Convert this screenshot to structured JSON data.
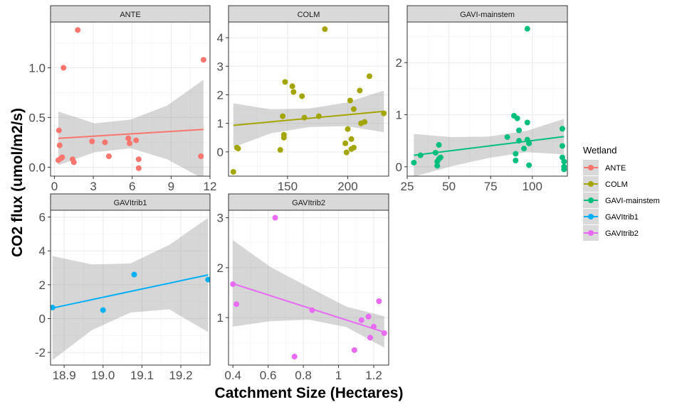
{
  "chart_data": {
    "type": "scatter",
    "xlabel": "Catchment Size (Hectares)",
    "ylabel": "CO2 flux (umol/m2/s)",
    "legend": {
      "title": "Wetland",
      "position": "right",
      "entries": [
        {
          "name": "ANTE",
          "color": "#F8766D"
        },
        {
          "name": "COLM",
          "color": "#A3A500"
        },
        {
          "name": "GAVI-mainstem",
          "color": "#00BF7D"
        },
        {
          "name": "GAVItrib1",
          "color": "#00B0F6"
        },
        {
          "name": "GAVItrib2",
          "color": "#E76BF3"
        }
      ]
    },
    "grid": true,
    "smoothing": "linear fit with confidence band",
    "panels": [
      {
        "name": "ANTE",
        "color": "#F8766D",
        "xlim": [
          -0.3,
          12.0
        ],
        "ylim": [
          -0.09,
          1.46
        ],
        "xticks": [
          0,
          3,
          6,
          9,
          12
        ],
        "yticks": [
          0.0,
          0.5,
          1.0
        ],
        "ytick_labels": [
          "0.0",
          "0.5",
          "1.0"
        ],
        "x": [
          0.3,
          0.35,
          0.4,
          0.5,
          0.6,
          0.7,
          1.4,
          1.5,
          1.8,
          2.9,
          3.9,
          4.2,
          5.7,
          5.8,
          6.3,
          6.5,
          6.5,
          11.3,
          11.5
        ],
        "y": [
          0.07,
          0.37,
          0.22,
          0.09,
          0.1,
          1.0,
          0.08,
          0.05,
          1.38,
          0.26,
          0.25,
          0.11,
          0.29,
          0.24,
          0.27,
          0.08,
          -0.01,
          0.11,
          1.08
        ],
        "fit": {
          "x": [
            0.3,
            11.5
          ],
          "y": [
            0.29,
            0.38
          ]
        },
        "band": {
          "x": [
            0.3,
            3.1,
            5.9,
            8.7,
            11.5
          ],
          "lower": [
            0.02,
            0.15,
            0.19,
            0.08,
            -0.12
          ],
          "upper": [
            0.56,
            0.44,
            0.48,
            0.62,
            0.88
          ]
        }
      },
      {
        "name": "COLM",
        "color": "#A3A500",
        "xlim": [
          101,
          234
        ],
        "ylim": [
          -0.85,
          4.55
        ],
        "xticks": [
          100,
          150,
          200
        ],
        "yticks": [
          0,
          1,
          2,
          3,
          4
        ],
        "ytick_labels": [
          "0",
          "1",
          "2",
          "3",
          "4"
        ],
        "x": [
          105,
          108,
          109,
          144,
          146,
          147,
          147,
          148,
          154,
          155,
          162,
          164,
          176,
          181,
          198,
          199,
          200,
          202,
          203,
          203,
          205,
          205,
          210,
          211,
          214,
          218,
          230
        ],
        "y": [
          -0.7,
          0.15,
          0.12,
          0.07,
          1.25,
          0.6,
          0.5,
          2.45,
          2.3,
          2.1,
          1.95,
          1.2,
          1.25,
          4.3,
          0.3,
          -0.02,
          0.8,
          1.8,
          0.1,
          0.45,
          1.5,
          0.15,
          2.15,
          1.0,
          1.05,
          2.65,
          1.35
        ],
        "fit": {
          "x": [
            105,
            230
          ],
          "y": [
            0.93,
            1.42
          ]
        },
        "band": {
          "x": [
            105,
            136,
            168,
            199,
            230
          ],
          "lower": [
            0.16,
            0.65,
            0.87,
            0.9,
            0.69
          ],
          "upper": [
            1.7,
            1.49,
            1.52,
            1.73,
            2.15
          ]
        }
      },
      {
        "name": "GAVI-mainstem",
        "color": "#00BF7D",
        "xlim": [
          25,
          121
        ],
        "ylim": [
          -0.18,
          2.78
        ],
        "xticks": [
          25,
          50,
          75,
          100
        ],
        "yticks": [
          0,
          1,
          2
        ],
        "ytick_labels": [
          "0",
          "1",
          "2"
        ],
        "x": [
          29,
          33,
          42,
          43,
          43,
          44,
          44,
          45,
          85,
          89,
          90,
          90,
          91,
          92,
          92,
          95,
          97,
          97,
          97,
          98,
          98,
          118,
          118,
          118,
          119,
          119,
          119
        ],
        "y": [
          0.08,
          0.22,
          0.27,
          0.02,
          0.1,
          0.15,
          0.42,
          0.18,
          0.57,
          0.98,
          0.25,
          0.12,
          0.93,
          0.7,
          0.5,
          0.35,
          2.65,
          0.85,
          0.52,
          0.45,
          0.03,
          0.73,
          0.4,
          0.18,
          0.1,
          0.0,
          -0.05
        ],
        "fit": {
          "x": [
            29,
            119
          ],
          "y": [
            0.22,
            0.58
          ]
        },
        "band": {
          "x": [
            29,
            51.5,
            74,
            96.5,
            119
          ],
          "lower": [
            -0.19,
            0.01,
            0.17,
            0.28,
            0.24
          ],
          "upper": [
            0.63,
            0.57,
            0.58,
            0.69,
            0.92
          ]
        }
      },
      {
        "name": "GAVItrib1",
        "color": "#00B0F6",
        "xlim": [
          18.865,
          19.275
        ],
        "ylim": [
          -2.75,
          6.4
        ],
        "xticks": [
          18.9,
          19.0,
          19.1,
          19.2
        ],
        "yticks": [
          -2,
          0,
          2,
          4,
          6
        ],
        "ytick_labels": [
          "-2",
          "0",
          "2",
          "4",
          "6"
        ],
        "xtick_labels": [
          "18.9",
          "19.0",
          "19.1",
          "19.2"
        ],
        "x": [
          18.87,
          19.0,
          19.08,
          19.27
        ],
        "y": [
          0.65,
          0.5,
          2.6,
          2.3
        ],
        "fit": {
          "x": [
            18.87,
            19.27
          ],
          "y": [
            0.62,
            2.58
          ]
        },
        "band": {
          "x": [
            18.87,
            18.97,
            19.07,
            19.17,
            19.27
          ],
          "lower": [
            -2.45,
            -0.7,
            0.35,
            0.55,
            -0.8
          ],
          "upper": [
            3.7,
            3.2,
            3.25,
            4.35,
            5.95
          ]
        }
      },
      {
        "name": "GAVItrib2",
        "color": "#E76BF3",
        "xlim": [
          0.375,
          1.285
        ],
        "ylim": [
          0.05,
          3.15
        ],
        "xticks": [
          0.4,
          0.6,
          0.8,
          1.0,
          1.2
        ],
        "yticks": [
          1,
          2,
          3
        ],
        "ytick_labels": [
          "1",
          "2",
          "3"
        ],
        "x": [
          0.4,
          0.42,
          0.64,
          0.75,
          0.85,
          1.09,
          1.13,
          1.17,
          1.18,
          1.2,
          1.23,
          1.26
        ],
        "y": [
          1.67,
          1.27,
          3.0,
          0.22,
          1.15,
          0.35,
          0.95,
          1.02,
          0.6,
          0.82,
          1.33,
          0.69
        ],
        "fit": {
          "x": [
            0.4,
            1.26
          ],
          "y": [
            1.68,
            0.71
          ]
        },
        "band": {
          "x": [
            0.4,
            0.615,
            0.83,
            1.045,
            1.26
          ],
          "lower": [
            0.82,
            0.93,
            0.96,
            0.81,
            0.4
          ],
          "upper": [
            2.55,
            2.01,
            1.61,
            1.22,
            1.03
          ]
        }
      }
    ]
  }
}
